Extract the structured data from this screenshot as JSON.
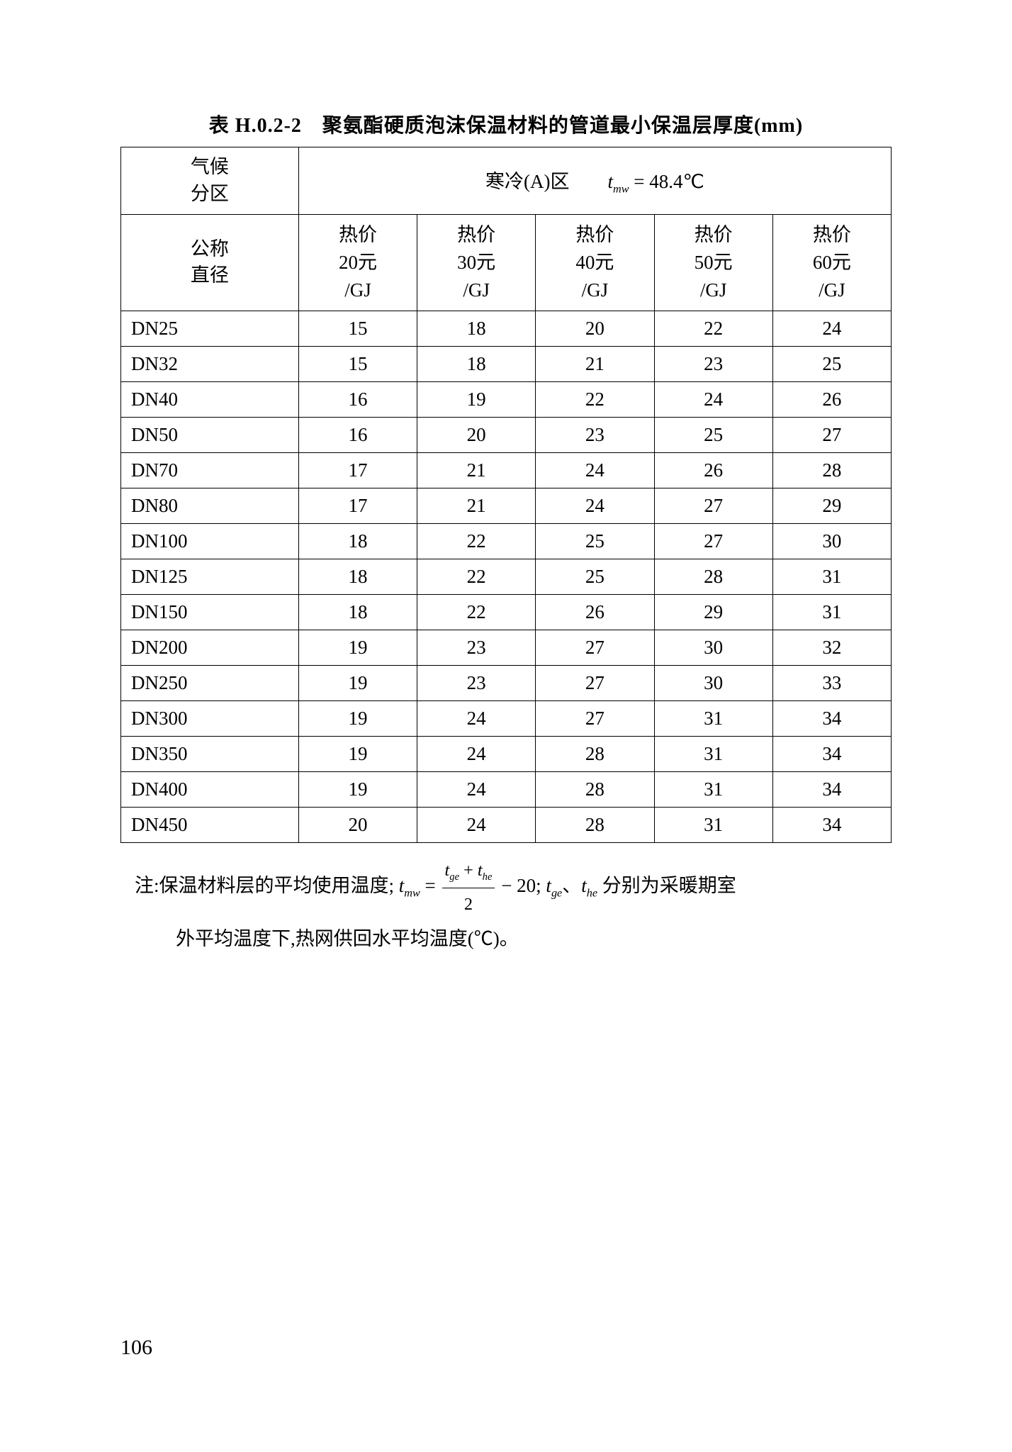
{
  "title": "表 H.0.2-2　聚氨酯硬质泡沫保温材料的管道最小保温层厚度(mm)",
  "table": {
    "climate_label": "气候\n分区",
    "zone_label_pre": "寒冷(A)区　　",
    "zone_formula_t": "t",
    "zone_formula_sub": "mw",
    "zone_formula_eq": " = 48.4℃",
    "nominal_label": "公称\n直径",
    "price_cols": [
      {
        "line1": "热价",
        "line2": "20元",
        "line3": "/GJ"
      },
      {
        "line1": "热价",
        "line2": "30元",
        "line3": "/GJ"
      },
      {
        "line1": "热价",
        "line2": "40元",
        "line3": "/GJ"
      },
      {
        "line1": "热价",
        "line2": "50元",
        "line3": "/GJ"
      },
      {
        "line1": "热价",
        "line2": "60元",
        "line3": "/GJ"
      }
    ],
    "rows": [
      {
        "dn": "DN25",
        "v": [
          "15",
          "18",
          "20",
          "22",
          "24"
        ]
      },
      {
        "dn": "DN32",
        "v": [
          "15",
          "18",
          "21",
          "23",
          "25"
        ]
      },
      {
        "dn": "DN40",
        "v": [
          "16",
          "19",
          "22",
          "24",
          "26"
        ]
      },
      {
        "dn": "DN50",
        "v": [
          "16",
          "20",
          "23",
          "25",
          "27"
        ]
      },
      {
        "dn": "DN70",
        "v": [
          "17",
          "21",
          "24",
          "26",
          "28"
        ]
      },
      {
        "dn": "DN80",
        "v": [
          "17",
          "21",
          "24",
          "27",
          "29"
        ]
      },
      {
        "dn": "DN100",
        "v": [
          "18",
          "22",
          "25",
          "27",
          "30"
        ]
      },
      {
        "dn": "DN125",
        "v": [
          "18",
          "22",
          "25",
          "28",
          "31"
        ]
      },
      {
        "dn": "DN150",
        "v": [
          "18",
          "22",
          "26",
          "29",
          "31"
        ]
      },
      {
        "dn": "DN200",
        "v": [
          "19",
          "23",
          "27",
          "30",
          "32"
        ]
      },
      {
        "dn": "DN250",
        "v": [
          "19",
          "23",
          "27",
          "30",
          "33"
        ]
      },
      {
        "dn": "DN300",
        "v": [
          "19",
          "24",
          "27",
          "31",
          "34"
        ]
      },
      {
        "dn": "DN350",
        "v": [
          "19",
          "24",
          "28",
          "31",
          "34"
        ]
      },
      {
        "dn": "DN400",
        "v": [
          "19",
          "24",
          "28",
          "31",
          "34"
        ]
      },
      {
        "dn": "DN450",
        "v": [
          "20",
          "24",
          "28",
          "31",
          "34"
        ]
      }
    ]
  },
  "note": {
    "prefix": "注:保温材料层的平均使用温度; ",
    "t_mw": "t",
    "sub_mw": "mw",
    "eq1": " = ",
    "frac_num_a": "t",
    "frac_num_sub_a": "ge",
    "frac_num_plus": " + ",
    "frac_num_b": "t",
    "frac_num_sub_b": "he",
    "frac_den": "2",
    "minus20": " − 20; ",
    "t_ge": "t",
    "sub_ge": "ge",
    "dunhao": "、",
    "t_he": "t",
    "sub_he": "he",
    "mid": " 分别为采暖期室",
    "line2": "外平均温度下,热网供回水平均温度(℃)。"
  },
  "page_number": "106"
}
